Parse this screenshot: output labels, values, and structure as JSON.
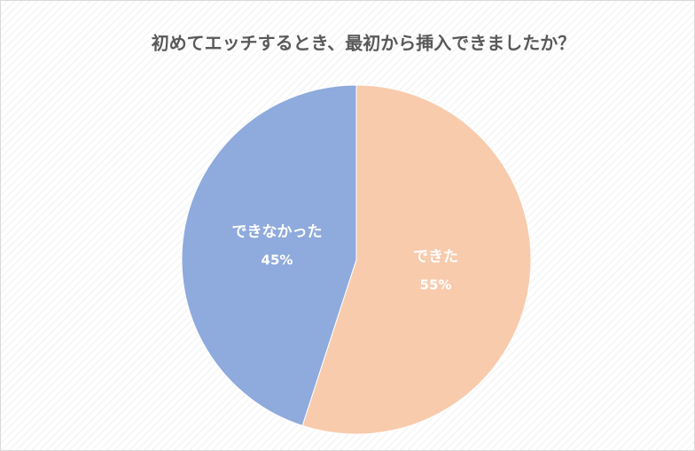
{
  "chart_data": {
    "type": "pie",
    "title": "初めてエッチするとき、最初から挿入できましたか？",
    "categories": [
      "できた",
      "できなかった"
    ],
    "values": [
      55,
      45
    ],
    "value_labels": [
      "55%",
      "45%"
    ],
    "colors": [
      "#F8CBAD",
      "#8FAADC"
    ]
  }
}
